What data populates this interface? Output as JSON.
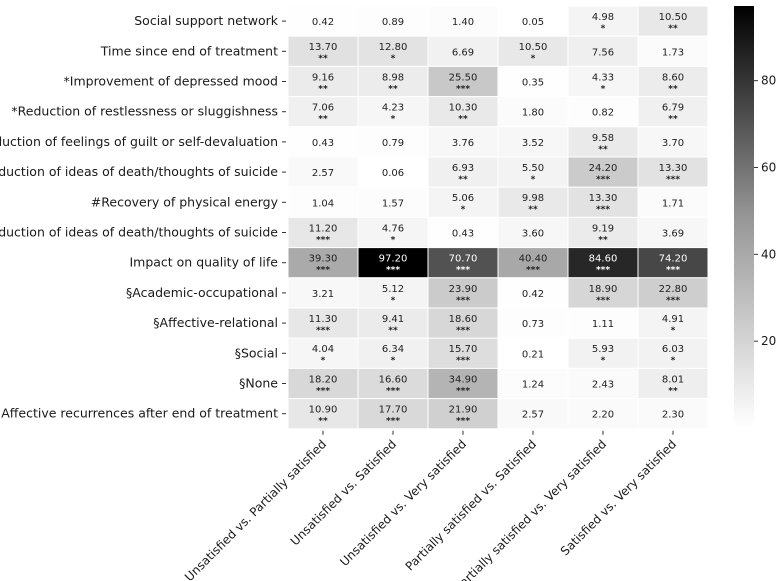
{
  "chart_data": {
    "type": "heatmap",
    "colormap": "greys",
    "value_range": [
      0,
      97.2
    ],
    "colorbar_ticks": [
      20,
      40,
      60,
      80
    ],
    "rows": [
      "Social support network",
      "Time since end of treatment",
      "*Improvement of depressed mood",
      "*Reduction of restlessness or sluggishness",
      "*Reduction of feelings of guilt or self-devaluation",
      "*Reduction of ideas of death/thoughts of suicide",
      "#Recovery of physical energy",
      "#Reduction of ideas of death/thoughts of suicide",
      "Impact on quality of life",
      "§Academic-occupational",
      "§Affective-relational",
      "§Social",
      "§None",
      "Affective recurrences after end of treatment"
    ],
    "columns": [
      "Unsatisfied vs. Partially satisfied",
      "Unsatisfied vs. Satisfied",
      "Unsatisfied vs. Very satisfied",
      "Partially satisfied vs. Satisfied",
      "Partially satisfied vs. Very satisfied",
      "Satisfied vs. Very satisfied"
    ],
    "values": [
      [
        0.42,
        0.89,
        1.4,
        0.05,
        4.98,
        10.5
      ],
      [
        13.7,
        12.8,
        6.69,
        10.5,
        7.56,
        1.73
      ],
      [
        9.16,
        8.98,
        25.5,
        0.35,
        4.33,
        8.6
      ],
      [
        7.06,
        4.23,
        10.3,
        1.8,
        0.82,
        6.79
      ],
      [
        0.43,
        0.79,
        3.76,
        3.52,
        9.58,
        3.7
      ],
      [
        2.57,
        0.06,
        6.93,
        5.5,
        24.2,
        13.3
      ],
      [
        1.04,
        1.57,
        5.06,
        9.98,
        13.3,
        1.71
      ],
      [
        11.2,
        4.76,
        0.43,
        3.6,
        9.19,
        3.69
      ],
      [
        39.3,
        97.2,
        70.7,
        40.4,
        84.6,
        74.2
      ],
      [
        3.21,
        5.12,
        23.9,
        0.42,
        18.9,
        22.8
      ],
      [
        11.3,
        9.41,
        18.6,
        0.73,
        1.11,
        4.91
      ],
      [
        4.04,
        6.34,
        15.7,
        0.21,
        5.93,
        6.03
      ],
      [
        18.2,
        16.6,
        34.9,
        1.24,
        2.43,
        8.01
      ],
      [
        10.9,
        17.7,
        21.9,
        2.57,
        2.2,
        2.3
      ]
    ],
    "value_labels": [
      [
        "0.42",
        "0.89",
        "1.40",
        "0.05",
        "4.98",
        "10.50"
      ],
      [
        "13.70",
        "12.80",
        "6.69",
        "10.50",
        "7.56",
        "1.73"
      ],
      [
        "9.16",
        "8.98",
        "25.50",
        "0.35",
        "4.33",
        "8.60"
      ],
      [
        "7.06",
        "4.23",
        "10.30",
        "1.80",
        "0.82",
        "6.79"
      ],
      [
        "0.43",
        "0.79",
        "3.76",
        "3.52",
        "9.58",
        "3.70"
      ],
      [
        "2.57",
        "0.06",
        "6.93",
        "5.50",
        "24.20",
        "13.30"
      ],
      [
        "1.04",
        "1.57",
        "5.06",
        "9.98",
        "13.30",
        "1.71"
      ],
      [
        "11.20",
        "4.76",
        "0.43",
        "3.60",
        "9.19",
        "3.69"
      ],
      [
        "39.30",
        "97.20",
        "70.70",
        "40.40",
        "84.60",
        "74.20"
      ],
      [
        "3.21",
        "5.12",
        "23.90",
        "0.42",
        "18.90",
        "22.80"
      ],
      [
        "11.30",
        "9.41",
        "18.60",
        "0.73",
        "1.11",
        "4.91"
      ],
      [
        "4.04",
        "6.34",
        "15.70",
        "0.21",
        "5.93",
        "6.03"
      ],
      [
        "18.20",
        "16.60",
        "34.90",
        "1.24",
        "2.43",
        "8.01"
      ],
      [
        "10.90",
        "17.70",
        "21.90",
        "2.57",
        "2.20",
        "2.30"
      ]
    ],
    "significance": [
      [
        "",
        "",
        "",
        "",
        "*",
        "**"
      ],
      [
        "**",
        "*",
        "",
        "*",
        "",
        ""
      ],
      [
        "**",
        "**",
        "***",
        "",
        "*",
        "**"
      ],
      [
        "**",
        "*",
        "**",
        "",
        "",
        "**"
      ],
      [
        "",
        "",
        "",
        "",
        "**",
        ""
      ],
      [
        "",
        "",
        "**",
        "*",
        "***",
        "***"
      ],
      [
        "",
        "",
        "*",
        "**",
        "***",
        ""
      ],
      [
        "***",
        "*",
        "",
        "",
        "**",
        ""
      ],
      [
        "***",
        "***",
        "***",
        "***",
        "***",
        "***"
      ],
      [
        "",
        "*",
        "***",
        "",
        "***",
        "***"
      ],
      [
        "***",
        "**",
        "***",
        "",
        "",
        "*"
      ],
      [
        "*",
        "*",
        "***",
        "",
        "*",
        "*"
      ],
      [
        "***",
        "***",
        "***",
        "",
        "",
        "**"
      ],
      [
        "**",
        "***",
        "***",
        "",
        "",
        ""
      ]
    ],
    "title": "",
    "xlabel": "",
    "ylabel": ""
  }
}
